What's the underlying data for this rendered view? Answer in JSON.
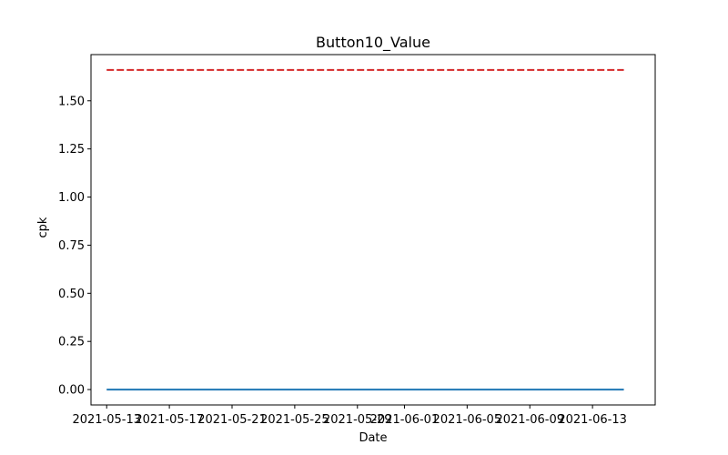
{
  "chart_data": {
    "type": "line",
    "title": "Button10_Value",
    "xlabel": "Date",
    "ylabel": "cpk",
    "x_type": "date",
    "xlim": [
      "2021-05-12",
      "2021-06-17"
    ],
    "ylim": [
      -0.08,
      1.74
    ],
    "x_ticks": [
      "2021-05-13",
      "2021-05-17",
      "2021-05-21",
      "2021-05-25",
      "2021-05-29",
      "2021-06-01",
      "2021-06-05",
      "2021-06-09",
      "2021-06-13"
    ],
    "y_ticks": [
      0.0,
      0.25,
      0.5,
      0.75,
      1.0,
      1.25,
      1.5
    ],
    "y_tick_labels": [
      "0.00",
      "0.25",
      "0.50",
      "0.75",
      "1.00",
      "1.25",
      "1.50"
    ],
    "grid": false,
    "series": [
      {
        "color": "#1f77b4",
        "style": "solid",
        "x": [
          "2021-05-13",
          "2021-06-15"
        ],
        "y": [
          0,
          0
        ]
      },
      {
        "color": "#d62728",
        "style": "dashed",
        "x": [
          "2021-05-13",
          "2021-06-15"
        ],
        "y": [
          1.66,
          1.66
        ]
      }
    ]
  }
}
